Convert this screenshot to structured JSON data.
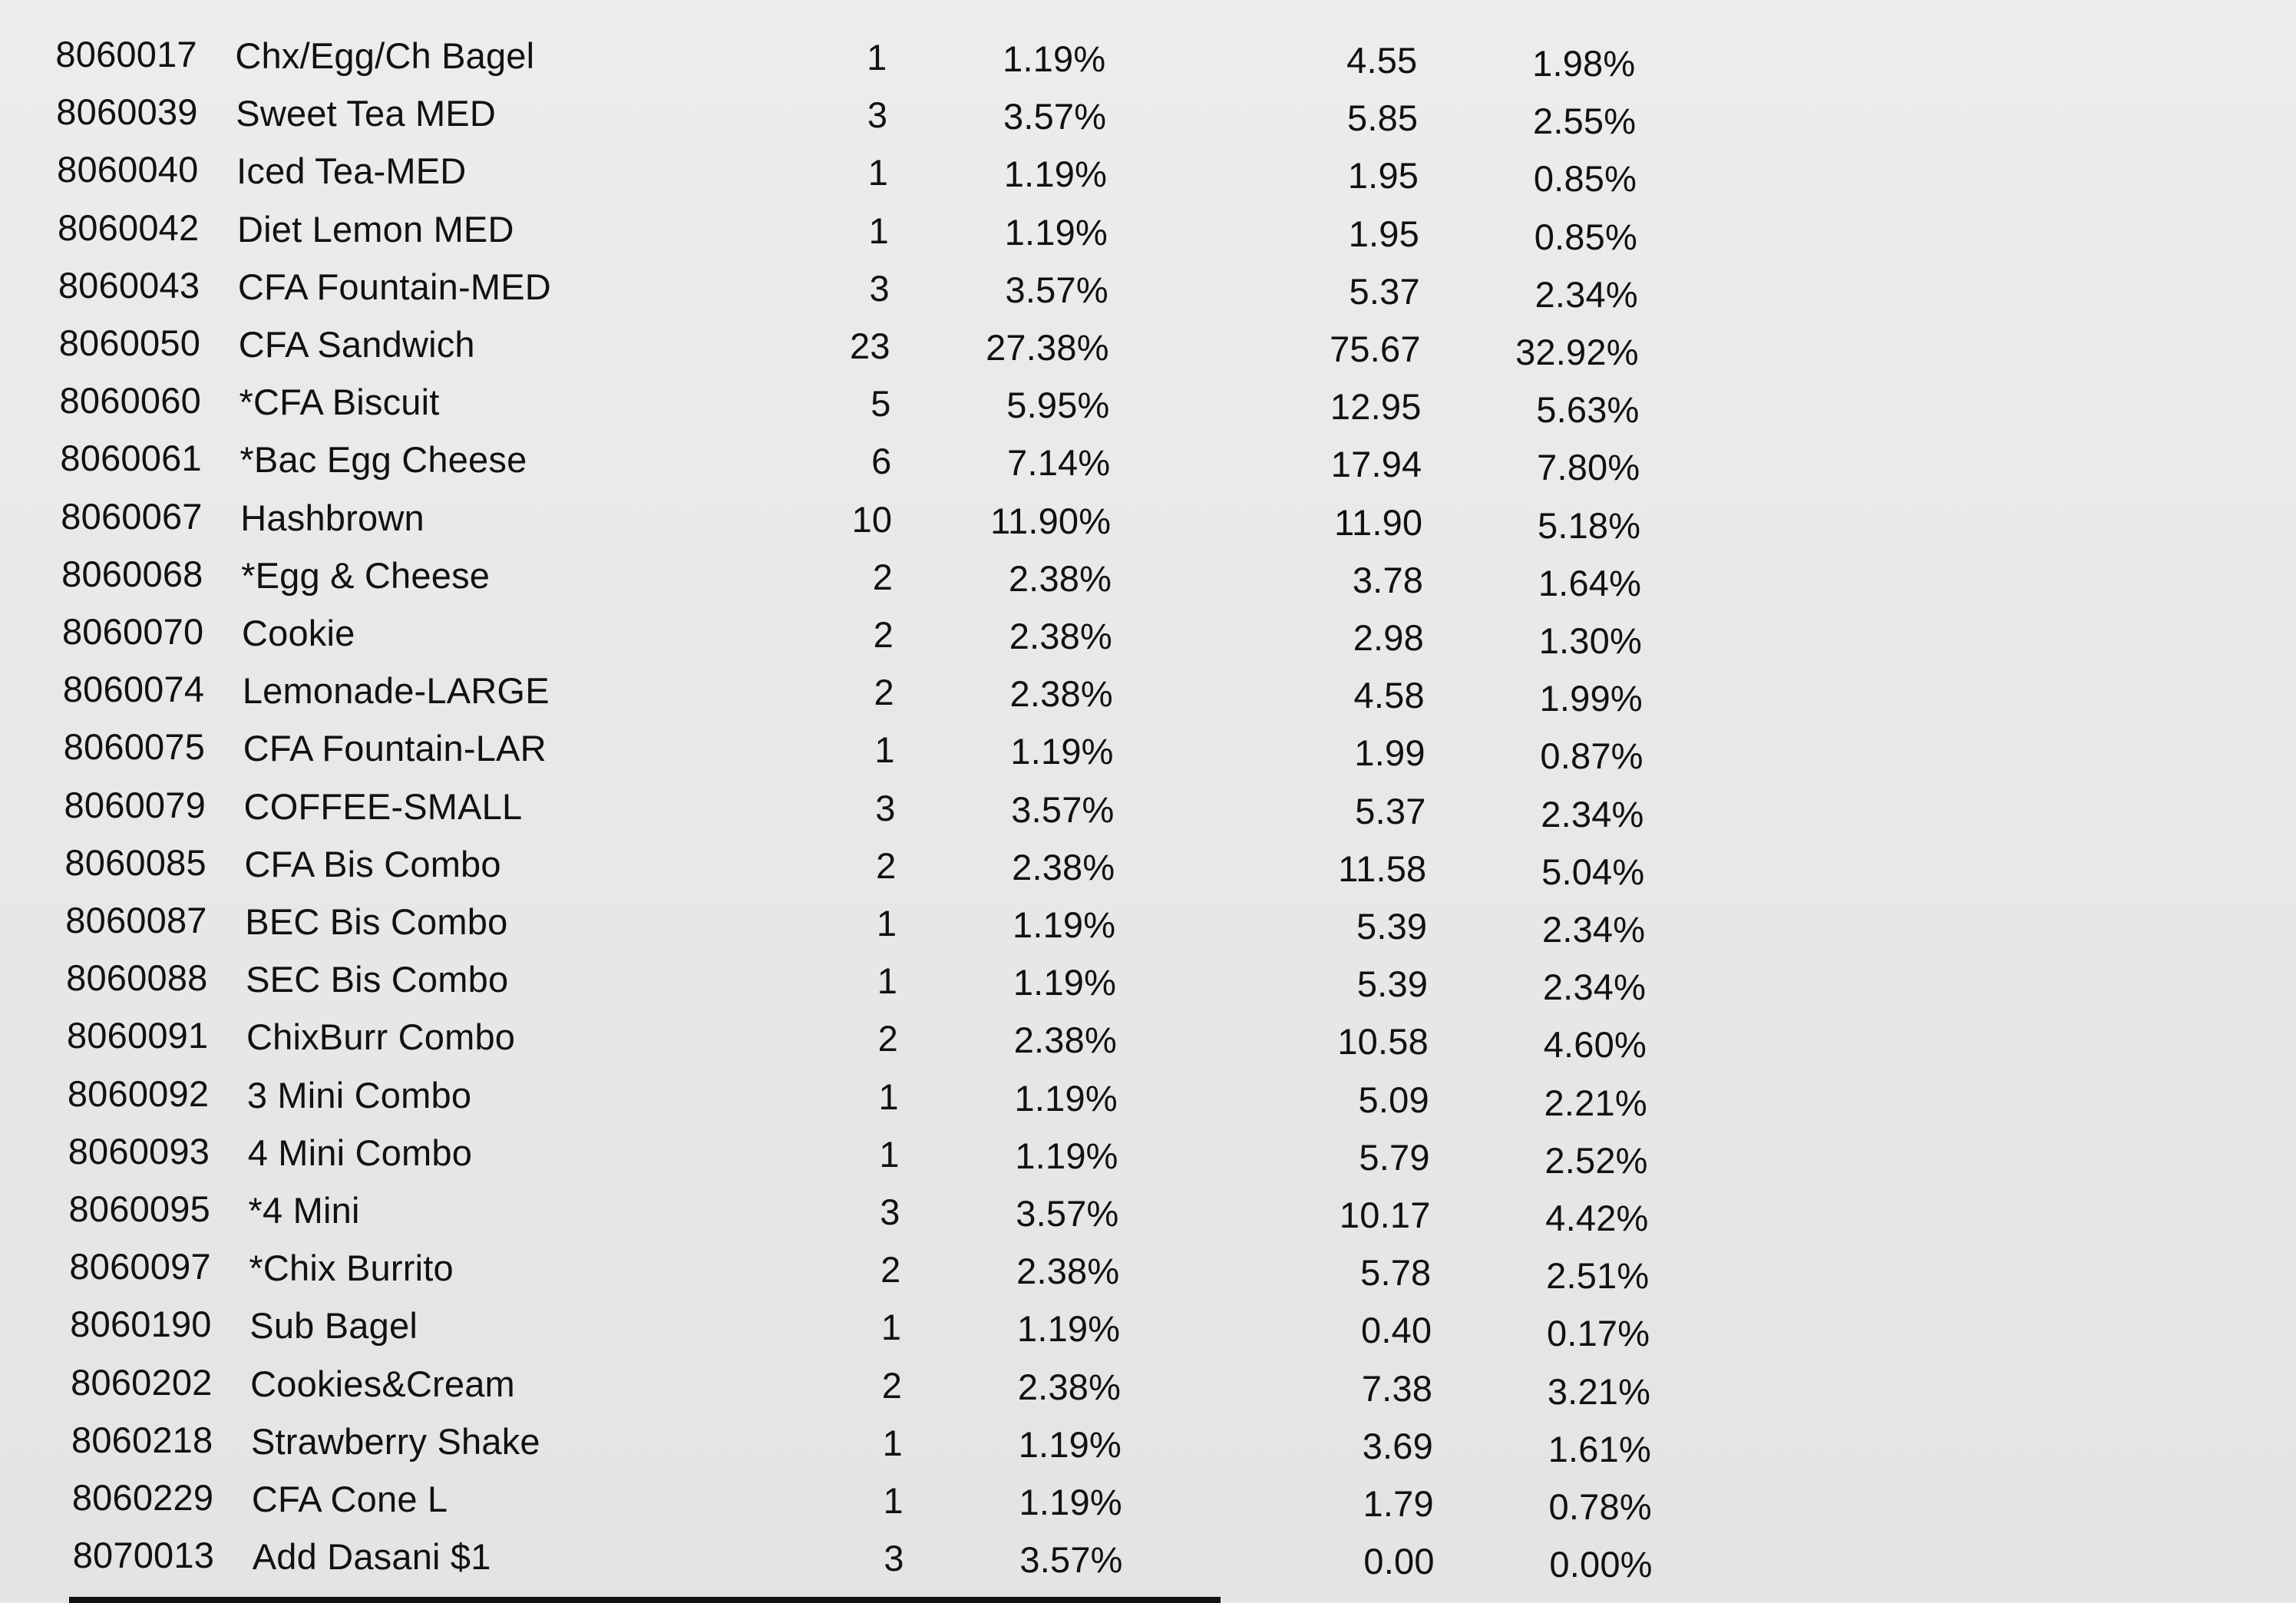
{
  "report": {
    "rows": [
      {
        "item_code": "8060017",
        "description": "Chx/Egg/Ch Bagel",
        "qty": "1",
        "qty_pct": "1.19%",
        "amount": "4.55",
        "amount_pct": "1.98%"
      },
      {
        "item_code": "8060039",
        "description": "Sweet Tea MED",
        "qty": "3",
        "qty_pct": "3.57%",
        "amount": "5.85",
        "amount_pct": "2.55%"
      },
      {
        "item_code": "8060040",
        "description": "Iced Tea-MED",
        "qty": "1",
        "qty_pct": "1.19%",
        "amount": "1.95",
        "amount_pct": "0.85%"
      },
      {
        "item_code": "8060042",
        "description": "Diet Lemon MED",
        "qty": "1",
        "qty_pct": "1.19%",
        "amount": "1.95",
        "amount_pct": "0.85%"
      },
      {
        "item_code": "8060043",
        "description": "CFA Fountain-MED",
        "qty": "3",
        "qty_pct": "3.57%",
        "amount": "5.37",
        "amount_pct": "2.34%"
      },
      {
        "item_code": "8060050",
        "description": "CFA Sandwich",
        "qty": "23",
        "qty_pct": "27.38%",
        "amount": "75.67",
        "amount_pct": "32.92%"
      },
      {
        "item_code": "8060060",
        "description": "*CFA Biscuit",
        "qty": "5",
        "qty_pct": "5.95%",
        "amount": "12.95",
        "amount_pct": "5.63%"
      },
      {
        "item_code": "8060061",
        "description": "*Bac Egg Cheese",
        "qty": "6",
        "qty_pct": "7.14%",
        "amount": "17.94",
        "amount_pct": "7.80%"
      },
      {
        "item_code": "8060067",
        "description": "Hashbrown",
        "qty": "10",
        "qty_pct": "11.90%",
        "amount": "11.90",
        "amount_pct": "5.18%"
      },
      {
        "item_code": "8060068",
        "description": "*Egg & Cheese",
        "qty": "2",
        "qty_pct": "2.38%",
        "amount": "3.78",
        "amount_pct": "1.64%"
      },
      {
        "item_code": "8060070",
        "description": "Cookie",
        "qty": "2",
        "qty_pct": "2.38%",
        "amount": "2.98",
        "amount_pct": "1.30%"
      },
      {
        "item_code": "8060074",
        "description": "Lemonade-LARGE",
        "qty": "2",
        "qty_pct": "2.38%",
        "amount": "4.58",
        "amount_pct": "1.99%"
      },
      {
        "item_code": "8060075",
        "description": "CFA Fountain-LAR",
        "qty": "1",
        "qty_pct": "1.19%",
        "amount": "1.99",
        "amount_pct": "0.87%"
      },
      {
        "item_code": "8060079",
        "description": "COFFEE-SMALL",
        "qty": "3",
        "qty_pct": "3.57%",
        "amount": "5.37",
        "amount_pct": "2.34%"
      },
      {
        "item_code": "8060085",
        "description": "CFA Bis Combo",
        "qty": "2",
        "qty_pct": "2.38%",
        "amount": "11.58",
        "amount_pct": "5.04%"
      },
      {
        "item_code": "8060087",
        "description": "BEC Bis Combo",
        "qty": "1",
        "qty_pct": "1.19%",
        "amount": "5.39",
        "amount_pct": "2.34%"
      },
      {
        "item_code": "8060088",
        "description": "SEC Bis Combo",
        "qty": "1",
        "qty_pct": "1.19%",
        "amount": "5.39",
        "amount_pct": "2.34%"
      },
      {
        "item_code": "8060091",
        "description": "ChixBurr Combo",
        "qty": "2",
        "qty_pct": "2.38%",
        "amount": "10.58",
        "amount_pct": "4.60%"
      },
      {
        "item_code": "8060092",
        "description": "3 Mini Combo",
        "qty": "1",
        "qty_pct": "1.19%",
        "amount": "5.09",
        "amount_pct": "2.21%"
      },
      {
        "item_code": "8060093",
        "description": "4 Mini Combo",
        "qty": "1",
        "qty_pct": "1.19%",
        "amount": "5.79",
        "amount_pct": "2.52%"
      },
      {
        "item_code": "8060095",
        "description": "*4 Mini",
        "qty": "3",
        "qty_pct": "3.57%",
        "amount": "10.17",
        "amount_pct": "4.42%"
      },
      {
        "item_code": "8060097",
        "description": "*Chix Burrito",
        "qty": "2",
        "qty_pct": "2.38%",
        "amount": "5.78",
        "amount_pct": "2.51%"
      },
      {
        "item_code": "8060190",
        "description": "Sub Bagel",
        "qty": "1",
        "qty_pct": "1.19%",
        "amount": "0.40",
        "amount_pct": "0.17%"
      },
      {
        "item_code": "8060202",
        "description": "Cookies&Cream",
        "qty": "2",
        "qty_pct": "2.38%",
        "amount": "7.38",
        "amount_pct": "3.21%"
      },
      {
        "item_code": "8060218",
        "description": "Strawberry Shake",
        "qty": "1",
        "qty_pct": "1.19%",
        "amount": "3.69",
        "amount_pct": "1.61%"
      },
      {
        "item_code": "8060229",
        "description": "CFA Cone L",
        "qty": "1",
        "qty_pct": "1.19%",
        "amount": "1.79",
        "amount_pct": "0.78%"
      },
      {
        "item_code": "8070013",
        "description": "Add Dasani $1",
        "qty": "3",
        "qty_pct": "3.57%",
        "amount": "0.00",
        "amount_pct": "0.00%"
      }
    ]
  }
}
